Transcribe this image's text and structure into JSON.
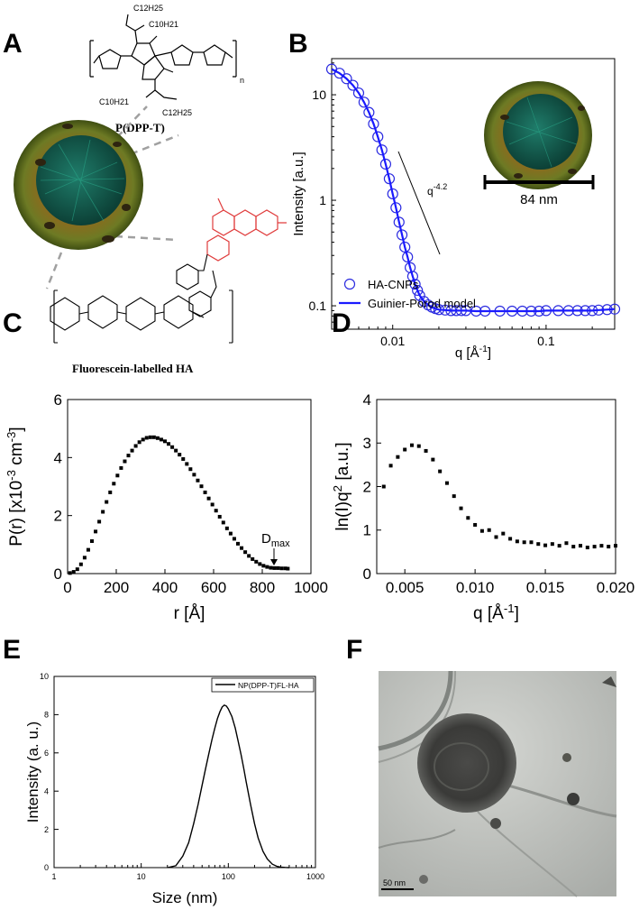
{
  "panel_labels": {
    "a": "A",
    "b": "B",
    "c": "C",
    "d": "D",
    "e": "E",
    "f": "F"
  },
  "panel_a": {
    "polymer_label": "P(DPP-T)",
    "subscript_n": "n",
    "side_chain_labels": [
      "C12H25",
      "C10H21",
      "C10H21",
      "C12H25"
    ],
    "ha_label": "Fluorescein-labelled HA"
  },
  "panel_b_extra": {
    "slope_label": "q",
    "slope_exp": "-4.2",
    "scale_label": "84 nm"
  },
  "panel_c_extra": {
    "dmax_label": "D",
    "dmax_sub": "max"
  },
  "panel_f": {
    "scale_bar_label": "50 nm"
  },
  "chart_data": [
    {
      "id": "B",
      "type": "scatter",
      "xlabel": "q [Å-1]",
      "ylabel": "Intensity [a.u.]",
      "x_scale": "log",
      "y_scale": "log",
      "xlim": [
        0.004,
        0.28
      ],
      "ylim": [
        0.06,
        22
      ],
      "xticks": [
        0.01,
        0.1
      ],
      "xtick_labels": [
        "0.01",
        "0.1"
      ],
      "yticks": [
        0.1,
        1,
        10
      ],
      "ytick_labels": [
        "0.1",
        "1",
        "10"
      ],
      "legend_position": "bottom-left",
      "series": [
        {
          "name": "HA-CNPs",
          "style": "open-circle",
          "color": "#2b2be0",
          "x": [
            0.004,
            0.0045,
            0.005,
            0.0055,
            0.006,
            0.0065,
            0.007,
            0.0075,
            0.008,
            0.0085,
            0.009,
            0.0095,
            0.01,
            0.0105,
            0.011,
            0.0115,
            0.012,
            0.0125,
            0.013,
            0.0135,
            0.014,
            0.0145,
            0.015,
            0.016,
            0.017,
            0.018,
            0.019,
            0.02,
            0.022,
            0.024,
            0.026,
            0.028,
            0.03,
            0.035,
            0.04,
            0.05,
            0.06,
            0.07,
            0.08,
            0.09,
            0.1,
            0.12,
            0.14,
            0.16,
            0.18,
            0.2,
            0.22,
            0.25,
            0.28
          ],
          "y": [
            17.5,
            16,
            14.2,
            12.3,
            10.4,
            8.5,
            6.8,
            5.3,
            4.0,
            3.0,
            2.2,
            1.6,
            1.15,
            0.85,
            0.62,
            0.47,
            0.36,
            0.29,
            0.23,
            0.19,
            0.16,
            0.14,
            0.125,
            0.11,
            0.102,
            0.097,
            0.094,
            0.092,
            0.091,
            0.09,
            0.09,
            0.09,
            0.09,
            0.089,
            0.089,
            0.089,
            0.089,
            0.089,
            0.089,
            0.089,
            0.09,
            0.09,
            0.09,
            0.09,
            0.09,
            0.09,
            0.091,
            0.092,
            0.093
          ]
        },
        {
          "name": "Guinier-Porod model",
          "style": "line",
          "color": "#1a1aff",
          "x": [
            0.004,
            0.0045,
            0.005,
            0.0055,
            0.006,
            0.0065,
            0.007,
            0.0075,
            0.008,
            0.0085,
            0.009,
            0.0095,
            0.01,
            0.0105,
            0.011,
            0.0115,
            0.012,
            0.0125,
            0.013,
            0.0135,
            0.014,
            0.0145,
            0.015,
            0.016,
            0.017,
            0.018,
            0.019,
            0.02,
            0.022,
            0.024,
            0.026,
            0.028,
            0.03,
            0.035,
            0.04,
            0.05,
            0.06,
            0.07,
            0.08,
            0.09,
            0.1,
            0.12,
            0.14,
            0.16,
            0.18,
            0.2,
            0.22,
            0.25,
            0.28
          ],
          "y": [
            17.5,
            16,
            14.2,
            12.3,
            10.4,
            8.5,
            6.8,
            5.3,
            4.0,
            3.0,
            2.2,
            1.6,
            1.15,
            0.85,
            0.62,
            0.47,
            0.36,
            0.29,
            0.23,
            0.19,
            0.16,
            0.14,
            0.125,
            0.11,
            0.102,
            0.097,
            0.094,
            0.092,
            0.091,
            0.09,
            0.09,
            0.09,
            0.09,
            0.089,
            0.089,
            0.089,
            0.089,
            0.089,
            0.089,
            0.089,
            0.09,
            0.09,
            0.09,
            0.09,
            0.09,
            0.09,
            0.091,
            0.092,
            0.093
          ]
        }
      ]
    },
    {
      "id": "C",
      "type": "scatter",
      "xlabel": "r [Å]",
      "ylabel": "P(r) [x10-3 cm-3]",
      "xlim": [
        0,
        1000
      ],
      "ylim": [
        0,
        6
      ],
      "xticks": [
        0,
        200,
        400,
        600,
        800,
        1000
      ],
      "xtick_labels": [
        "0",
        "200",
        "400",
        "600",
        "800",
        "1000"
      ],
      "yticks": [
        0,
        2,
        4,
        6
      ],
      "ytick_labels": [
        "0",
        "2",
        "4",
        "6"
      ],
      "series": [
        {
          "name": "",
          "style": "square",
          "color": "#000000",
          "x": [
            10,
            25,
            40,
            55,
            70,
            85,
            100,
            115,
            130,
            145,
            160,
            175,
            190,
            205,
            220,
            235,
            250,
            265,
            280,
            295,
            310,
            325,
            340,
            355,
            370,
            385,
            400,
            415,
            430,
            445,
            460,
            475,
            490,
            505,
            520,
            535,
            550,
            565,
            580,
            595,
            610,
            625,
            640,
            655,
            670,
            685,
            700,
            715,
            730,
            745,
            760,
            775,
            790,
            805,
            820,
            835,
            850,
            865,
            880,
            895,
            905
          ],
          "y": [
            0.02,
            0.06,
            0.15,
            0.32,
            0.55,
            0.82,
            1.12,
            1.45,
            1.79,
            2.13,
            2.47,
            2.8,
            3.1,
            3.38,
            3.64,
            3.87,
            4.07,
            4.24,
            4.4,
            4.53,
            4.62,
            4.68,
            4.7,
            4.7,
            4.67,
            4.62,
            4.56,
            4.47,
            4.36,
            4.24,
            4.1,
            3.95,
            3.78,
            3.6,
            3.41,
            3.21,
            3.01,
            2.8,
            2.59,
            2.38,
            2.17,
            1.96,
            1.76,
            1.56,
            1.38,
            1.2,
            1.03,
            0.88,
            0.74,
            0.61,
            0.5,
            0.41,
            0.33,
            0.27,
            0.23,
            0.2,
            0.19,
            0.19,
            0.18,
            0.18,
            0.17
          ]
        }
      ]
    },
    {
      "id": "D",
      "type": "scatter",
      "xlabel": "q [Å-1]",
      "ylabel": "ln(I)q2 [a.u.]",
      "xlim": [
        0.003,
        0.02
      ],
      "ylim": [
        0,
        4
      ],
      "xticks": [
        0.005,
        0.01,
        0.015,
        0.02
      ],
      "xtick_labels": [
        "0.005",
        "0.010",
        "0.015",
        "0.020"
      ],
      "yticks": [
        0,
        1,
        2,
        3,
        4
      ],
      "ytick_labels": [
        "0",
        "1",
        "2",
        "3",
        "4"
      ],
      "series": [
        {
          "name": "",
          "style": "square",
          "color": "#000000",
          "x": [
            0.0035,
            0.004,
            0.0045,
            0.005,
            0.0055,
            0.006,
            0.0065,
            0.007,
            0.0075,
            0.008,
            0.0085,
            0.009,
            0.0095,
            0.01,
            0.0105,
            0.011,
            0.0115,
            0.012,
            0.0125,
            0.013,
            0.0135,
            0.014,
            0.0145,
            0.015,
            0.0155,
            0.016,
            0.0165,
            0.017,
            0.0175,
            0.018,
            0.0185,
            0.019,
            0.0195,
            0.02
          ],
          "y": [
            2.0,
            2.48,
            2.68,
            2.85,
            2.95,
            2.93,
            2.82,
            2.62,
            2.35,
            2.08,
            1.78,
            1.5,
            1.28,
            1.12,
            0.98,
            1.0,
            0.84,
            0.92,
            0.8,
            0.74,
            0.72,
            0.72,
            0.68,
            0.65,
            0.68,
            0.64,
            0.7,
            0.62,
            0.64,
            0.6,
            0.62,
            0.64,
            0.62,
            0.64
          ]
        }
      ]
    },
    {
      "id": "E",
      "type": "line",
      "xlabel": "Size (nm)",
      "ylabel": "Intensity (a. u.)",
      "x_scale": "log",
      "xlim": [
        1,
        1000
      ],
      "ylim": [
        0,
        10
      ],
      "xticks": [
        1,
        10,
        100,
        1000
      ],
      "xtick_labels": [
        "1",
        "10",
        "100",
        "1000"
      ],
      "yticks": [
        0,
        2,
        4,
        6,
        8,
        10
      ],
      "ytick_labels": [
        "0",
        "2",
        "4",
        "6",
        "8",
        "10"
      ],
      "legend_position": "top-right",
      "series": [
        {
          "name": "NP(DPP-T)FL-HA",
          "color": "#000000",
          "x": [
            20,
            25,
            30,
            35,
            40,
            45,
            50,
            55,
            60,
            65,
            70,
            75,
            80,
            85,
            90,
            95,
            100,
            110,
            120,
            130,
            140,
            150,
            160,
            180,
            200,
            220,
            250,
            280,
            320,
            360,
            400,
            450,
            500
          ],
          "y": [
            0,
            0.1,
            0.6,
            1.3,
            2.3,
            3.3,
            4.3,
            5.2,
            6.0,
            6.7,
            7.3,
            7.8,
            8.15,
            8.4,
            8.5,
            8.45,
            8.3,
            7.9,
            7.3,
            6.6,
            5.9,
            5.2,
            4.5,
            3.3,
            2.3,
            1.55,
            0.85,
            0.45,
            0.18,
            0.07,
            0.03,
            0.01,
            0
          ]
        }
      ]
    }
  ]
}
